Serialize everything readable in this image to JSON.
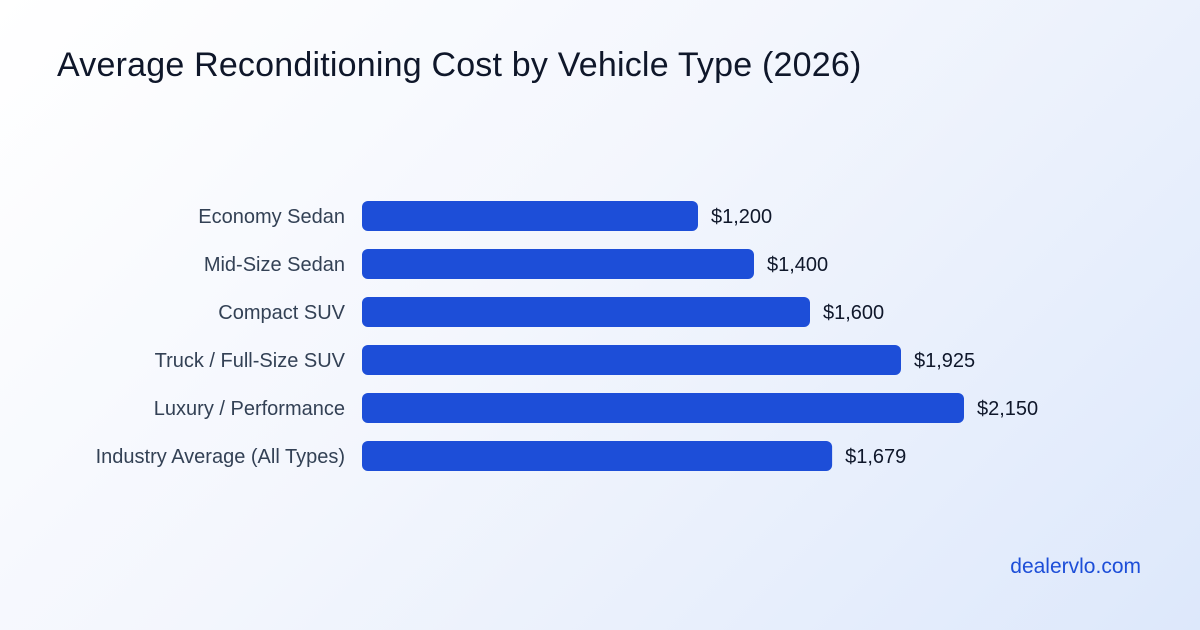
{
  "title": "Average Reconditioning Cost by Vehicle Type (2026)",
  "footer": "dealervlo.com",
  "colors": {
    "bar": "#1d4ed8",
    "title": "#0f172a",
    "footer": "#1d4ed8"
  },
  "chart_data": {
    "type": "bar",
    "orientation": "horizontal",
    "title": "Average Reconditioning Cost by Vehicle Type (2026)",
    "xlabel": "",
    "ylabel": "",
    "grid": false,
    "xlim": [
      0,
      2400
    ],
    "categories": [
      "Economy Sedan",
      "Mid-Size Sedan",
      "Compact SUV",
      "Truck / Full-Size SUV",
      "Luxury / Performance",
      "Industry Average (All Types)"
    ],
    "values": [
      1200,
      1400,
      1600,
      1925,
      2150,
      1679
    ],
    "value_labels": [
      "$1,200",
      "$1,400",
      "$1,600",
      "$1,925",
      "$2,150",
      "$1,679"
    ]
  }
}
